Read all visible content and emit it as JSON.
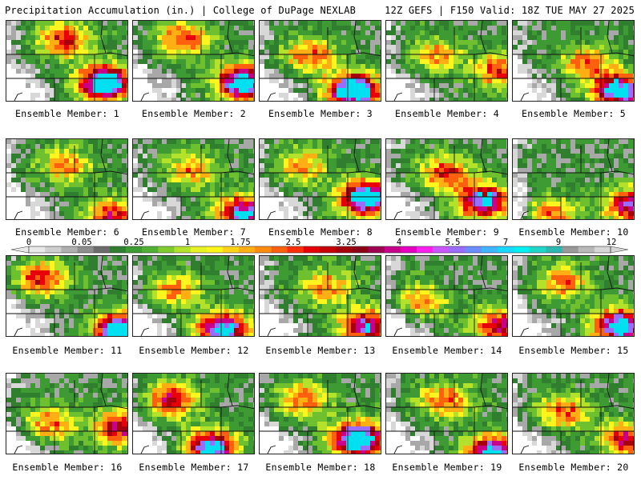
{
  "header": {
    "title": "Precipitation Accumulation (in.) | College of DuPage NEXLAB",
    "valid": "12Z GEFS | F150 Valid: 18Z TUE MAY 27 2025"
  },
  "colorbar": {
    "ticks": [
      "0",
      "0.05",
      "0.25",
      "1",
      "1.75",
      "2.5",
      "3.25",
      "4",
      "5.5",
      "7",
      "9",
      "12"
    ],
    "colors": [
      "#e9e9e9",
      "#cfcfcf",
      "#b0b0b0",
      "#8e8e8e",
      "#6c6c6c",
      "#2f7f2f",
      "#3e9a32",
      "#52b035",
      "#7fcc2f",
      "#b4e12a",
      "#e7f225",
      "#fff51e",
      "#ffd21a",
      "#ffae14",
      "#ff8a10",
      "#ff600d",
      "#ff2d0a",
      "#e80008",
      "#c8000a",
      "#a6000d",
      "#8a0014",
      "#a00050",
      "#c8008a",
      "#e600c0",
      "#ff20f0",
      "#cc55ff",
      "#9a6cff",
      "#6c8cff",
      "#3fb6ff",
      "#19d8ff",
      "#00f0f0",
      "#20d6c8",
      "#2cb8b0",
      "#9a9a9a",
      "#b9b9b9",
      "#d6d6d6"
    ]
  },
  "members": [
    {
      "label": "Ensemble Member: 1"
    },
    {
      "label": "Ensemble Member: 2"
    },
    {
      "label": "Ensemble Member: 3"
    },
    {
      "label": "Ensemble Member: 4"
    },
    {
      "label": "Ensemble Member: 5"
    },
    {
      "label": "Ensemble Member: 6"
    },
    {
      "label": "Ensemble Member: 7"
    },
    {
      "label": "Ensemble Member: 8"
    },
    {
      "label": "Ensemble Member: 9"
    },
    {
      "label": "Ensemble Member: 10"
    },
    {
      "label": "Ensemble Member: 11"
    },
    {
      "label": "Ensemble Member: 12"
    },
    {
      "label": "Ensemble Member: 13"
    },
    {
      "label": "Ensemble Member: 14"
    },
    {
      "label": "Ensemble Member: 15"
    },
    {
      "label": "Ensemble Member: 16"
    },
    {
      "label": "Ensemble Member: 17"
    },
    {
      "label": "Ensemble Member: 18"
    },
    {
      "label": "Ensemble Member: 19"
    },
    {
      "label": "Ensemble Member: 20"
    }
  ]
}
